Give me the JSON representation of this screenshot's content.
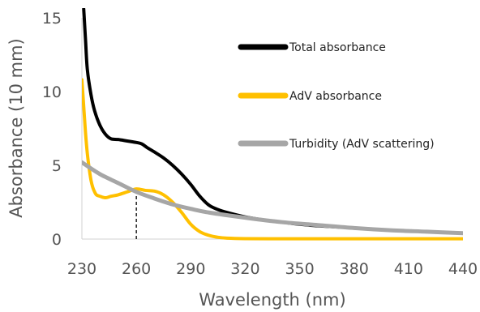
{
  "chart_data": {
    "type": "line",
    "title": "",
    "xlabel": "Wavelength (nm)",
    "ylabel": "Absorbance (10 mm)",
    "xlim": [
      230,
      440
    ],
    "ylim": [
      0,
      15
    ],
    "x_ticks": [
      "230",
      "260",
      "290",
      "320",
      "350",
      "380",
      "410",
      "440"
    ],
    "y_ticks": [
      "0",
      "5",
      "10",
      "15"
    ],
    "grid": false,
    "legend_position": "top-right",
    "annotations": [
      {
        "type": "dashed-vertical-line",
        "x": 260,
        "y_from": 0,
        "y_to": 3.4
      }
    ],
    "series": [
      {
        "name": "Total absorbance",
        "color": "#000000",
        "x": [
          231,
          232,
          233,
          235,
          237,
          240,
          243,
          246,
          250,
          255,
          260,
          263,
          266,
          270,
          275,
          280,
          285,
          290,
          295,
          300,
          305,
          310,
          320,
          330,
          340,
          350,
          360,
          380,
          400,
          420,
          440
        ],
        "y": [
          15.6,
          13.5,
          11.5,
          9.8,
          8.7,
          7.7,
          7.1,
          6.8,
          6.75,
          6.65,
          6.55,
          6.45,
          6.2,
          5.9,
          5.5,
          5.0,
          4.4,
          3.7,
          2.9,
          2.3,
          2.0,
          1.8,
          1.5,
          1.3,
          1.15,
          1.0,
          0.9,
          0.75,
          0.6,
          0.5,
          0.4
        ]
      },
      {
        "name": "AdV absorbance",
        "color": "#FFC000",
        "x": [
          230,
          231,
          232,
          233,
          234,
          235,
          236,
          237,
          238,
          240,
          243,
          246,
          250,
          255,
          260,
          265,
          270,
          275,
          280,
          285,
          290,
          295,
          300,
          305,
          310,
          320,
          340,
          360,
          380,
          400,
          420,
          440
        ],
        "y": [
          10.8,
          9.0,
          7.2,
          5.8,
          4.8,
          4.0,
          3.5,
          3.2,
          3.0,
          2.9,
          2.8,
          2.9,
          3.0,
          3.2,
          3.4,
          3.3,
          3.25,
          3.0,
          2.5,
          1.8,
          1.0,
          0.5,
          0.25,
          0.12,
          0.06,
          0.03,
          0.02,
          0.02,
          0.02,
          0.02,
          0.02,
          0.02
        ]
      },
      {
        "name": "Turbidity (AdV scattering)",
        "color": "#A6A6A6",
        "x": [
          230,
          240,
          250,
          260,
          270,
          280,
          290,
          300,
          320,
          340,
          360,
          380,
          400,
          420,
          440
        ],
        "y": [
          5.2,
          4.4,
          3.8,
          3.2,
          2.75,
          2.35,
          2.05,
          1.8,
          1.45,
          1.15,
          0.95,
          0.75,
          0.6,
          0.5,
          0.4
        ]
      }
    ]
  }
}
